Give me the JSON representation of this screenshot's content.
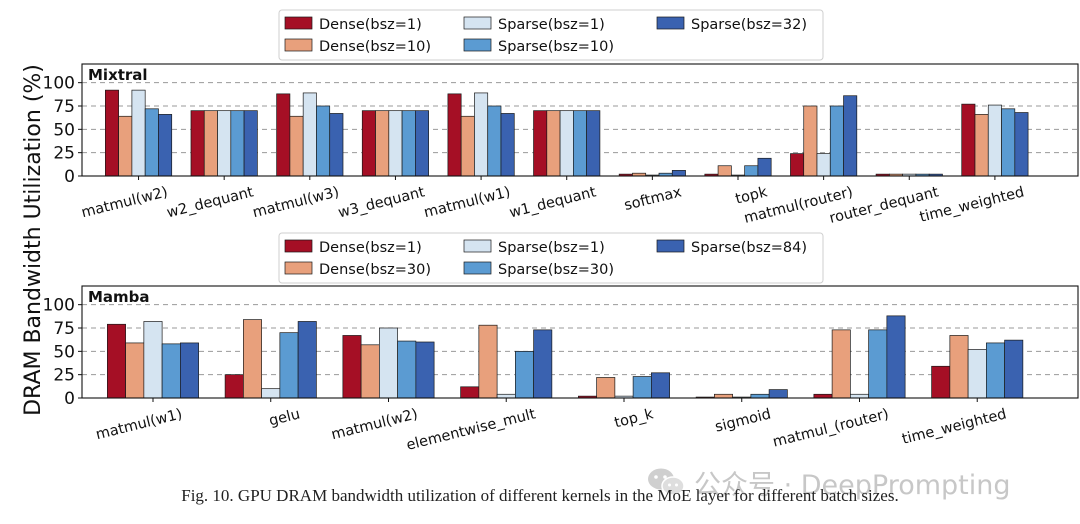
{
  "figure": {
    "ylabel": "DRAM Bandwidth Utilization (%)",
    "caption": "Fig. 10.  GPU DRAM bandwidth utilization of different kernels in the MoE layer for different batch sizes.",
    "watermark": "公众号 · DeepPrompting"
  },
  "colors": {
    "dense_small": "#a50f25",
    "dense_large": "#e8a07c",
    "sparse_small": "#d5e4f1",
    "sparse_mid": "#5b9bd2",
    "sparse_large": "#3a62b0"
  },
  "chart_data": [
    {
      "type": "bar",
      "title": "Mixtral",
      "ylim": [
        0,
        120
      ],
      "yticks": [
        "0",
        "25",
        "50",
        "75",
        "100"
      ],
      "grid": true,
      "legend_position": "top-center",
      "categories": [
        "matmul(w2)",
        "w2_dequant",
        "matmul(w3)",
        "w3_dequant",
        "matmul(w1)",
        "w1_dequant",
        "softmax",
        "topk",
        "matmul(router)",
        "router_dequant",
        "time_weighted"
      ],
      "series": [
        {
          "name": "Dense(bsz=1)",
          "color": "#a50f25",
          "values": [
            92,
            70,
            88,
            70,
            88,
            70,
            2,
            2,
            24,
            2,
            77
          ]
        },
        {
          "name": "Dense(bsz=10)",
          "color": "#e8a07c",
          "values": [
            64,
            70,
            64,
            70,
            64,
            70,
            3,
            11,
            75,
            2,
            66
          ]
        },
        {
          "name": "Sparse(bsz=1)",
          "color": "#d5e4f1",
          "values": [
            92,
            70,
            89,
            70,
            89,
            70,
            1,
            1,
            24,
            2,
            76
          ]
        },
        {
          "name": "Sparse(bsz=10)",
          "color": "#5b9bd2",
          "values": [
            72,
            70,
            75,
            70,
            75,
            70,
            3,
            11,
            75,
            2,
            72
          ]
        },
        {
          "name": "Sparse(bsz=32)",
          "color": "#3a62b0",
          "values": [
            66,
            70,
            67,
            70,
            67,
            70,
            6,
            19,
            86,
            2,
            68
          ]
        }
      ]
    },
    {
      "type": "bar",
      "title": "Mamba",
      "ylim": [
        0,
        120
      ],
      "yticks": [
        "0",
        "25",
        "50",
        "75",
        "100"
      ],
      "grid": true,
      "legend_position": "top-center",
      "categories": [
        "matmul(w1)",
        "gelu",
        "matmul(w2)",
        "elementwise_mult",
        "top_k",
        "sigmoid",
        "matmul_(router)",
        "time_weighted"
      ],
      "series": [
        {
          "name": "Dense(bsz=1)",
          "color": "#a50f25",
          "values": [
            79,
            25,
            67,
            12,
            2,
            1,
            4,
            34
          ]
        },
        {
          "name": "Dense(bsz=30)",
          "color": "#e8a07c",
          "values": [
            59,
            84,
            57,
            78,
            22,
            4,
            73,
            67
          ]
        },
        {
          "name": "Sparse(bsz=1)",
          "color": "#d5e4f1",
          "values": [
            82,
            10,
            75,
            4,
            2,
            1,
            4,
            52
          ]
        },
        {
          "name": "Sparse(bsz=30)",
          "color": "#5b9bd2",
          "values": [
            58,
            70,
            61,
            50,
            23,
            4,
            73,
            59
          ]
        },
        {
          "name": "Sparse(bsz=84)",
          "color": "#3a62b0",
          "values": [
            59,
            82,
            60,
            73,
            27,
            9,
            88,
            62
          ]
        }
      ]
    }
  ]
}
